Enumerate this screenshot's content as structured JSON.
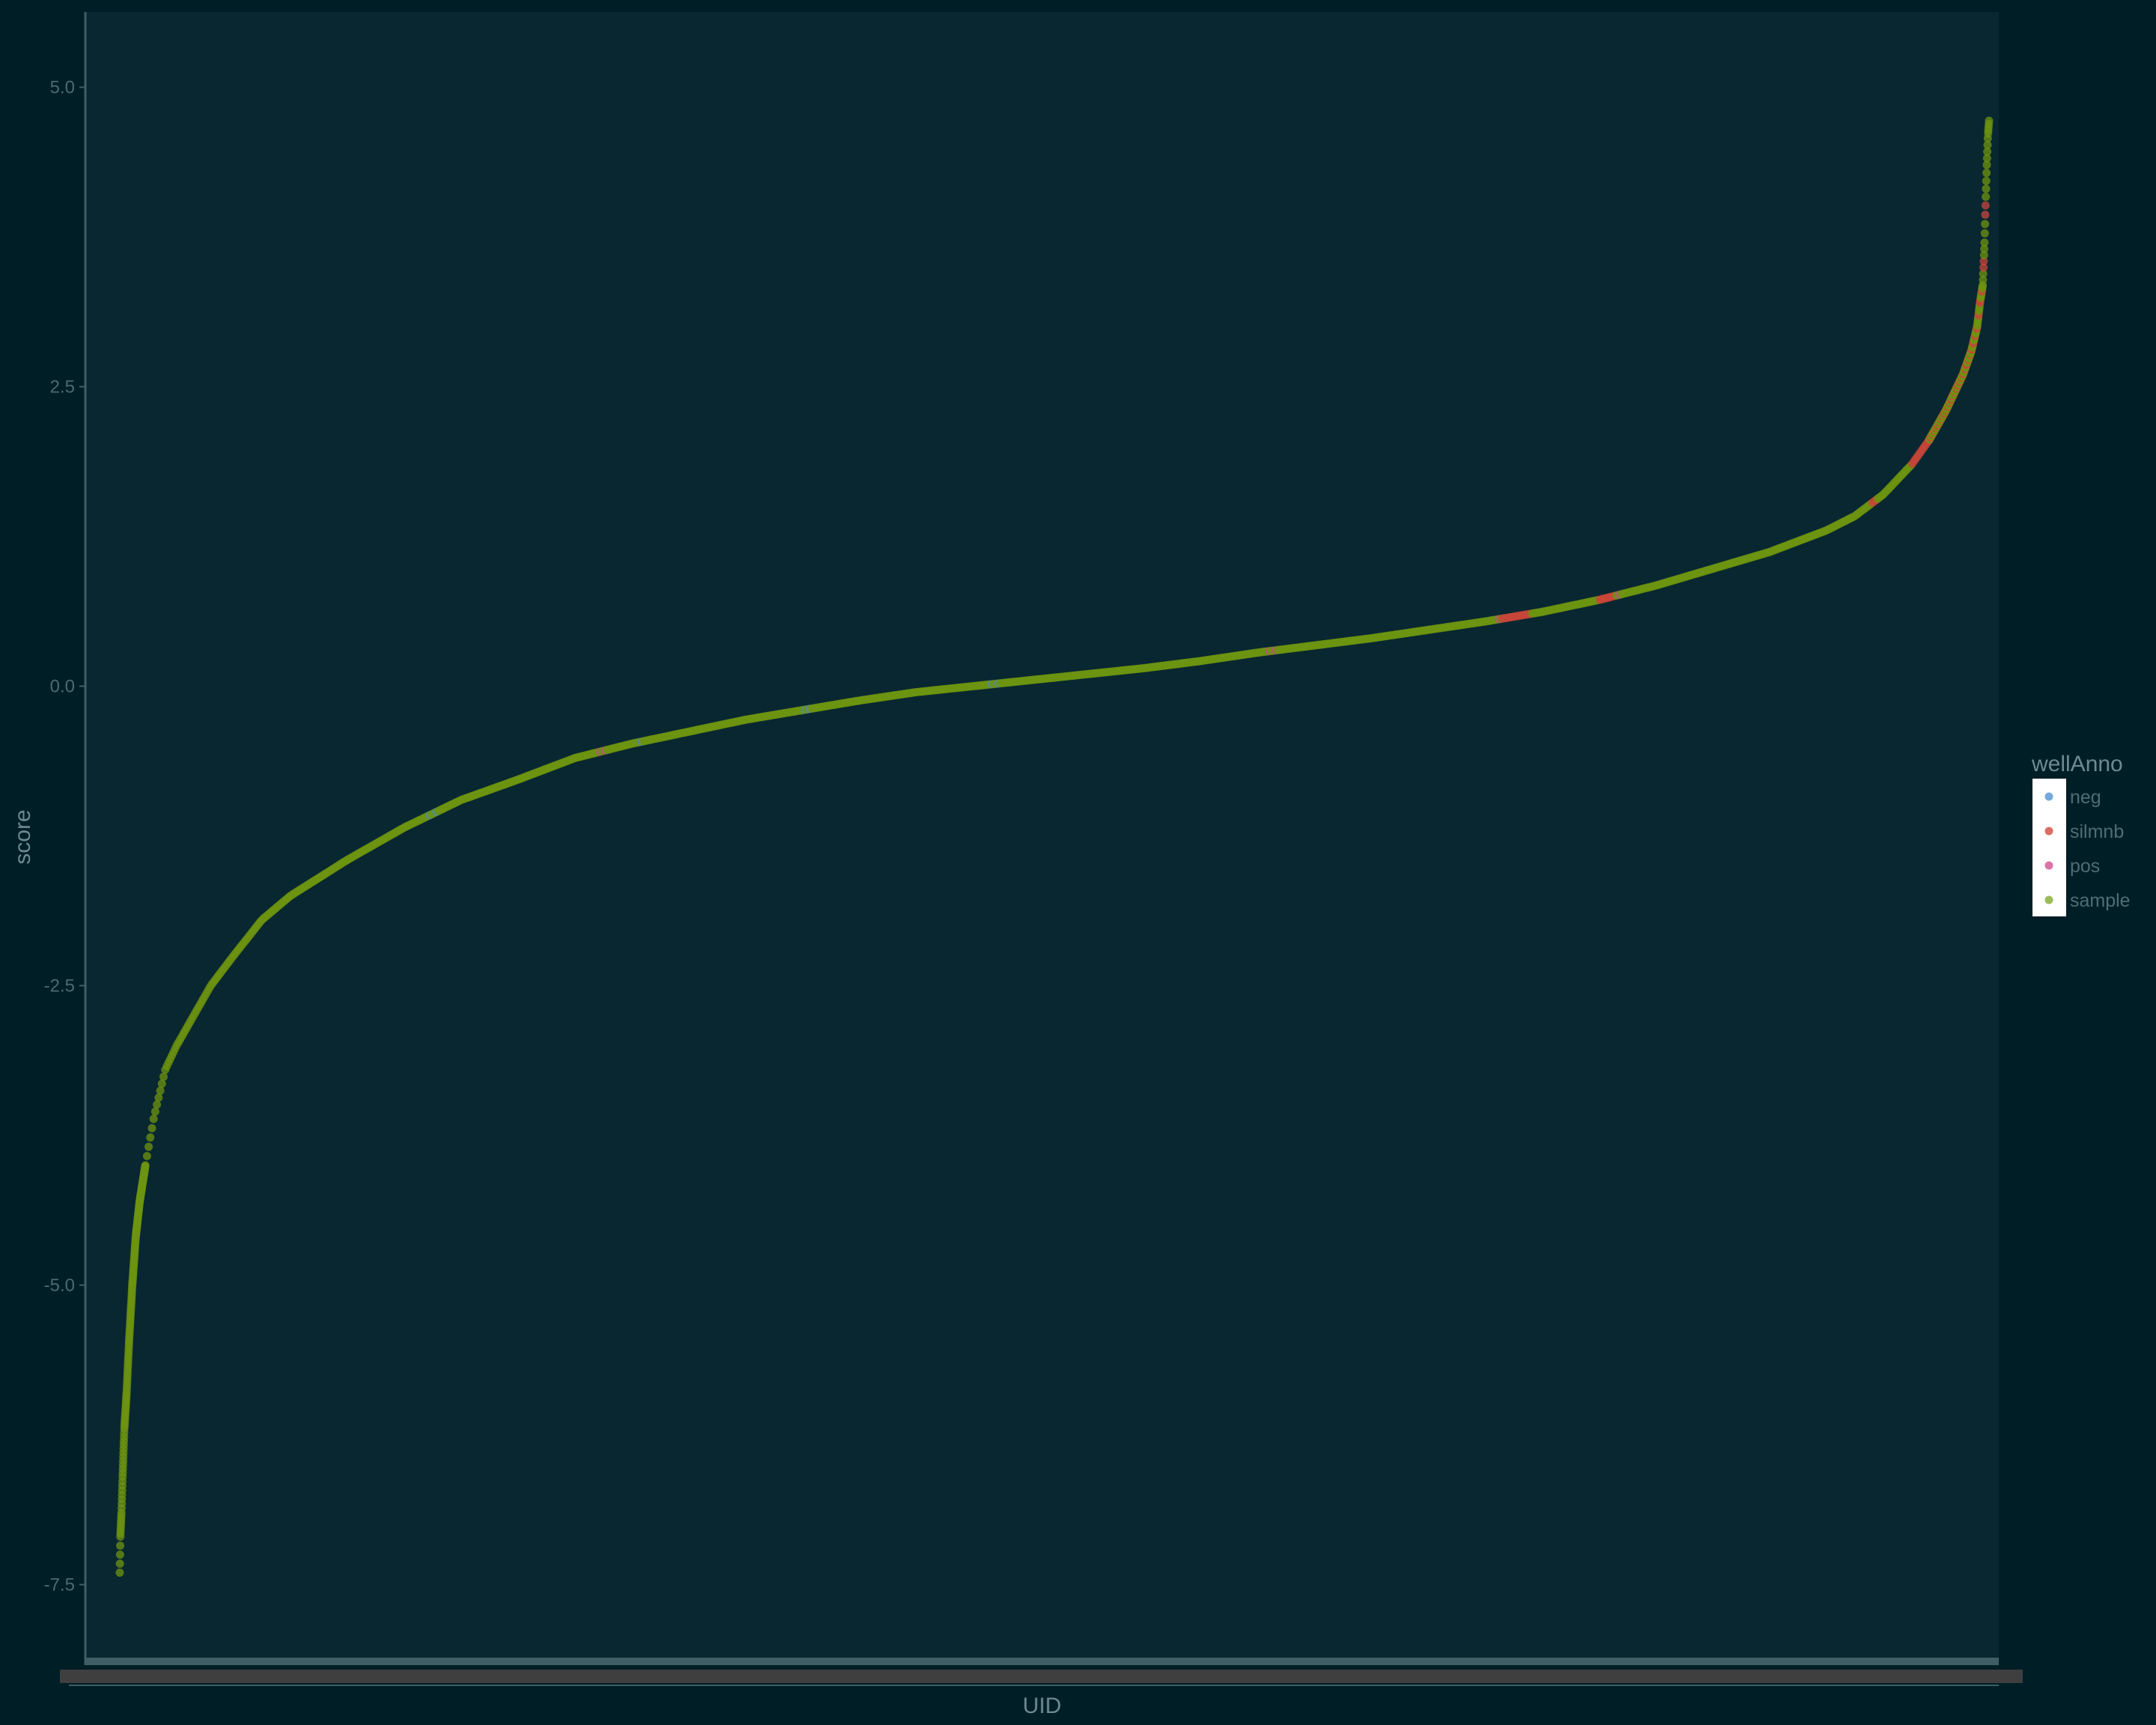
{
  "chart_data": {
    "type": "scatter",
    "xlabel": "UID",
    "ylabel": "score",
    "ylim": [
      -8.3,
      5.8
    ],
    "yticks": [
      5.0,
      2.5,
      0.0,
      -2.5,
      -5.0,
      -7.5
    ],
    "ytick_labels": [
      "5.0",
      "2.5",
      "0.0",
      "-2.5",
      "-5.0",
      "-7.5"
    ],
    "x_ticks_unreadable": true,
    "grid": false,
    "n_points": 1500,
    "legend": {
      "title": "wellAnno",
      "position": "right",
      "entries": [
        {
          "label": "neg",
          "color": "#5a9ad6"
        },
        {
          "label": "silmnb",
          "color": "#d6524a"
        },
        {
          "label": "pos",
          "color": "#d65a98"
        },
        {
          "label": "sample",
          "color": "#8ab03a"
        }
      ]
    },
    "series": [
      {
        "name": "sample",
        "color": "#6e9410",
        "note_shape": "sorted ascending scores",
        "anchors": [
          [
            0,
            -7.4
          ],
          [
            1,
            -7.1
          ],
          [
            3,
            -6.9
          ],
          [
            5,
            -6.6
          ],
          [
            8,
            -6.2
          ],
          [
            12,
            -5.9
          ],
          [
            16,
            -5.5
          ],
          [
            22,
            -5.0
          ],
          [
            28,
            -4.6
          ],
          [
            35,
            -4.3
          ],
          [
            45,
            -4.0
          ],
          [
            60,
            -3.6
          ],
          [
            80,
            -3.2
          ],
          [
            100,
            -3.0
          ],
          [
            130,
            -2.75
          ],
          [
            160,
            -2.5
          ],
          [
            200,
            -2.25
          ],
          [
            250,
            -1.95
          ],
          [
            300,
            -1.75
          ],
          [
            400,
            -1.45
          ],
          [
            500,
            -1.18
          ],
          [
            600,
            -0.95
          ],
          [
            700,
            -0.78
          ],
          [
            800,
            -0.6
          ],
          [
            900,
            -0.48
          ],
          [
            1000,
            -0.38
          ],
          [
            1100,
            -0.28
          ],
          [
            1200,
            -0.2
          ],
          [
            1300,
            -0.12
          ],
          [
            1400,
            -0.05
          ],
          [
            1500,
            0.0
          ],
          [
            1600,
            0.05
          ],
          [
            1700,
            0.1
          ],
          [
            1800,
            0.15
          ],
          [
            1900,
            0.21
          ],
          [
            2000,
            0.28
          ],
          [
            2100,
            0.34
          ],
          [
            2200,
            0.4
          ],
          [
            2300,
            0.47
          ],
          [
            2400,
            0.54
          ],
          [
            2500,
            0.62
          ],
          [
            2600,
            0.72
          ],
          [
            2700,
            0.84
          ],
          [
            2800,
            0.98
          ],
          [
            2900,
            1.12
          ],
          [
            3000,
            1.3
          ],
          [
            3050,
            1.42
          ],
          [
            3100,
            1.6
          ],
          [
            3150,
            1.85
          ],
          [
            3180,
            2.05
          ],
          [
            3210,
            2.3
          ],
          [
            3240,
            2.6
          ],
          [
            3255,
            2.8
          ],
          [
            3265,
            3.0
          ],
          [
            3270,
            3.2
          ],
          [
            3275,
            3.35
          ],
          [
            3278,
            3.7
          ],
          [
            3280,
            4.05
          ],
          [
            3282,
            4.35
          ],
          [
            3284,
            4.6
          ],
          [
            3286,
            4.72
          ]
        ],
        "x_range": [
          0,
          3286
        ]
      },
      {
        "name": "silmnb",
        "color": "#c8463a",
        "x_segments": [
          [
            2430,
            2480
          ],
          [
            2600,
            2630
          ],
          [
            3080,
            3280
          ]
        ]
      },
      {
        "name": "pos",
        "color": "#c24a8a",
        "x_segments": [
          [
            840,
            860
          ],
          [
            2020,
            2040
          ],
          [
            2420,
            2440
          ],
          [
            2620,
            2640
          ]
        ]
      },
      {
        "name": "neg",
        "color": "#4d88b8",
        "x_segments": [
          [
            540,
            560
          ],
          [
            900,
            920
          ],
          [
            1200,
            1220
          ],
          [
            1530,
            1550
          ]
        ]
      }
    ]
  }
}
